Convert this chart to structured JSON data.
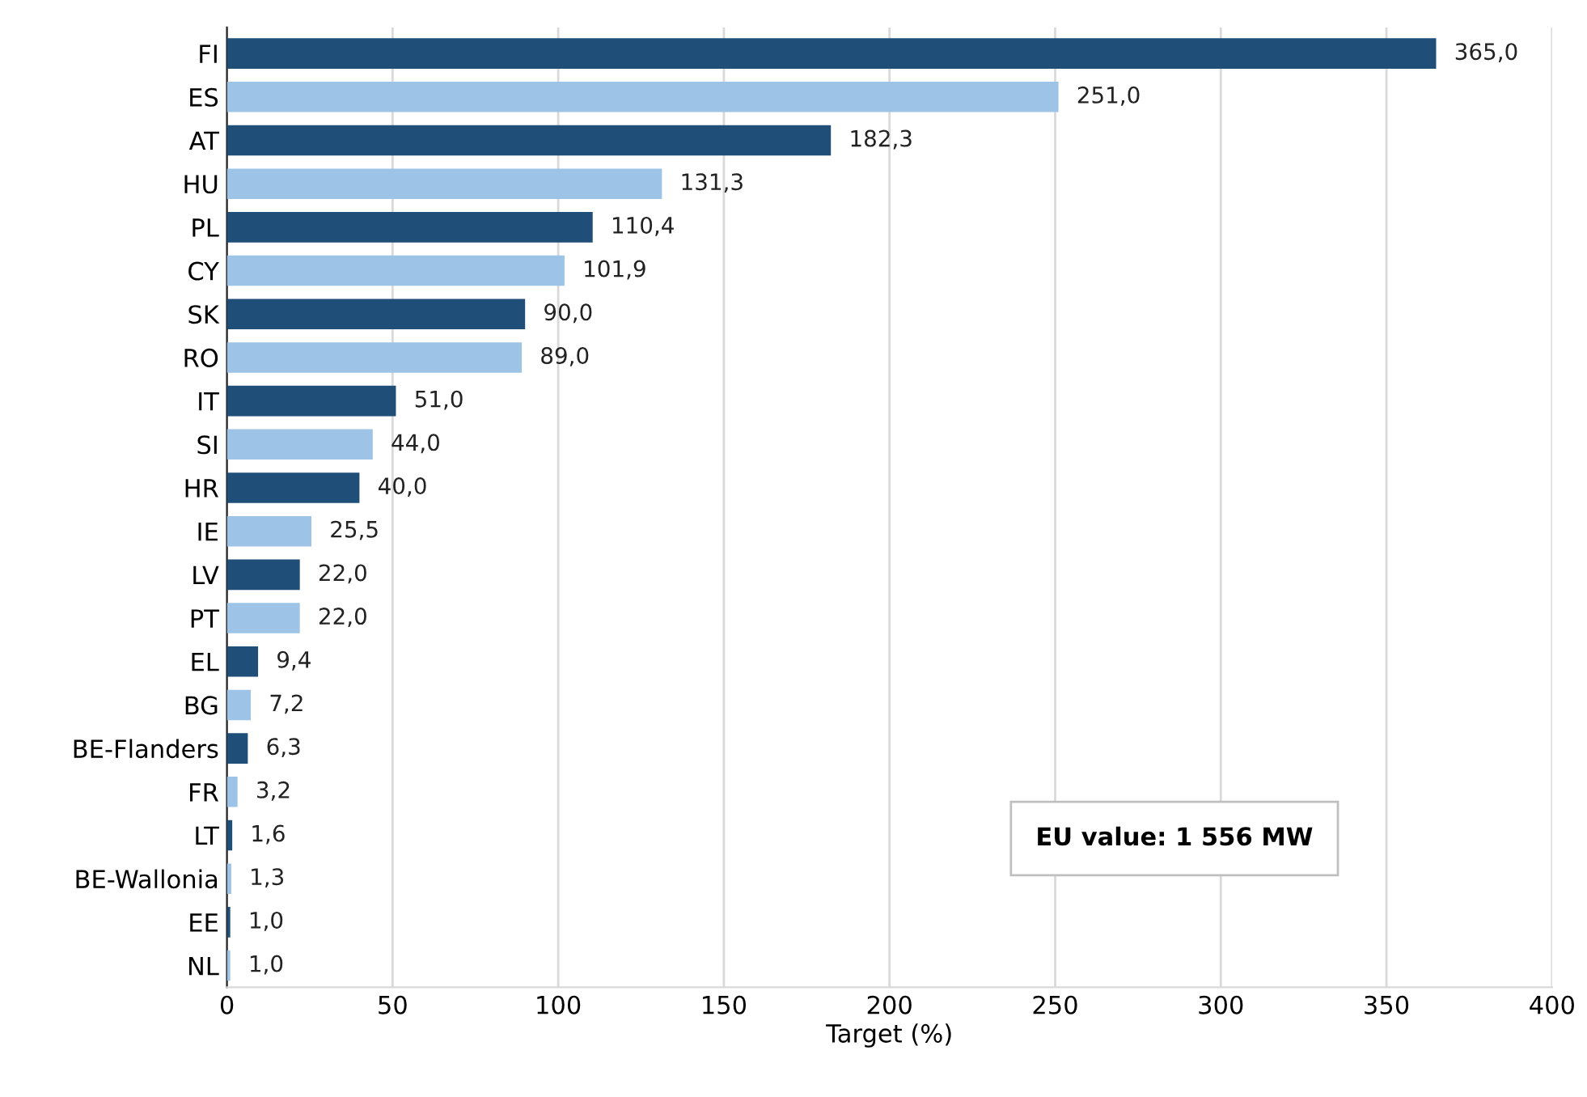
{
  "chart_data": {
    "type": "bar",
    "orientation": "horizontal",
    "xlabel": "Target (%)",
    "categories": [
      "FI",
      "ES",
      "AT",
      "HU",
      "PL",
      "CY",
      "SK",
      "RO",
      "IT",
      "SI",
      "HR",
      "IE",
      "LV",
      "PT",
      "EL",
      "BG",
      "BE-Flanders",
      "FR",
      "LT",
      "BE-Wallonia",
      "EE",
      "NL"
    ],
    "values": [
      365.0,
      251.0,
      182.3,
      131.3,
      110.4,
      101.9,
      90.0,
      89.0,
      51.0,
      44.0,
      40.0,
      25.5,
      22.0,
      22.0,
      9.4,
      7.2,
      6.3,
      3.2,
      1.6,
      1.3,
      1.0,
      1.0
    ],
    "value_labels": [
      "365,0",
      "251,0",
      "182,3",
      "131,3",
      "110,4",
      "101,9",
      "90,0",
      "89,0",
      "51,0",
      "44,0",
      "40,0",
      "25,5",
      "22,0",
      "22,0",
      "9,4",
      "7,2",
      "6,3",
      "3,2",
      "1,6",
      "1,3",
      "1,0",
      "1,0"
    ],
    "colors": [
      "#1f4e79",
      "#9dc3e6",
      "#1f4e79",
      "#9dc3e6",
      "#1f4e79",
      "#9dc3e6",
      "#1f4e79",
      "#9dc3e6",
      "#1f4e79",
      "#9dc3e6",
      "#1f4e79",
      "#9dc3e6",
      "#1f4e79",
      "#9dc3e6",
      "#1f4e79",
      "#9dc3e6",
      "#1f4e79",
      "#9dc3e6",
      "#1f4e79",
      "#9dc3e6",
      "#1f4e79",
      "#9dc3e6"
    ],
    "xlim": [
      0,
      400
    ],
    "xticks": [
      0,
      50,
      100,
      150,
      200,
      250,
      300,
      350,
      400
    ],
    "grid": "x",
    "annotations": [
      "EU value: 1 556 MW"
    ]
  }
}
